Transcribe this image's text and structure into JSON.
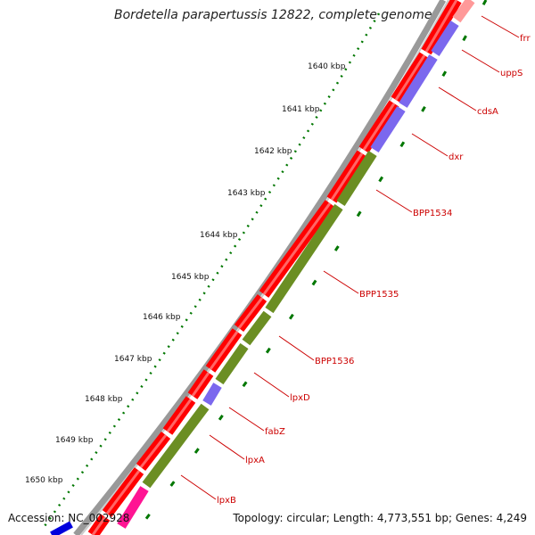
{
  "title": "Bordetella parapertussis 12822, complete genome",
  "footer": {
    "accession": "Accession: NC_002928",
    "summary": "Topology: circular; Length: 4,773,551 bp; Genes: 4,249"
  },
  "colors": {
    "forward_cds": "#ff0000",
    "cog_green": "#6b8e23",
    "cog_purple": "#7b68ee",
    "cog_pink": "#ff1493",
    "label": "#cc0000",
    "tick": "#007700",
    "backbone": "#888888"
  },
  "ticks": [
    {
      "label": "1640 kbp"
    },
    {
      "label": "1641 kbp"
    },
    {
      "label": "1642 kbp"
    },
    {
      "label": "1643 kbp"
    },
    {
      "label": "1644 kbp"
    },
    {
      "label": "1645 kbp"
    },
    {
      "label": "1646 kbp"
    },
    {
      "label": "1647 kbp"
    },
    {
      "label": "1648 kbp"
    },
    {
      "label": "1649 kbp"
    },
    {
      "label": "1650 kbp"
    }
  ],
  "genes": [
    {
      "label": "frr",
      "cog": "pink"
    },
    {
      "label": "uppS",
      "cog": "purple"
    },
    {
      "label": "cdsA",
      "cog": "purple"
    },
    {
      "label": "dxr",
      "cog": "purple"
    },
    {
      "label": "BPP1534",
      "cog": "green"
    },
    {
      "label": "BPP1535",
      "cog": "green"
    },
    {
      "label": "BPP1536",
      "cog": "green"
    },
    {
      "label": "lpxD",
      "cog": "green"
    },
    {
      "label": "fabZ",
      "cog": "purple"
    },
    {
      "label": "lpxA",
      "cog": "green"
    },
    {
      "label": "lpxB",
      "cog": "pink"
    }
  ]
}
